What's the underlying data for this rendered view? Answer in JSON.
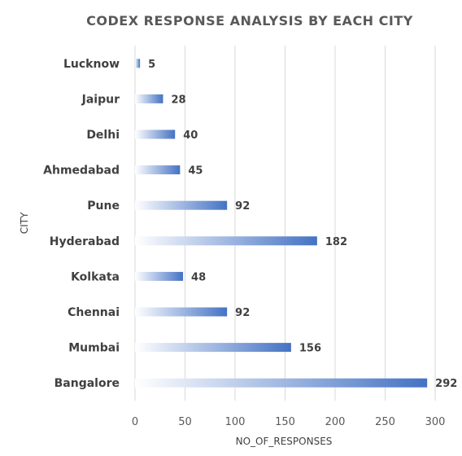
{
  "chart_data": {
    "type": "bar",
    "orientation": "horizontal",
    "title": "CODEX RESPONSE ANALYSIS BY EACH CITY",
    "xlabel": "NO_OF_RESPONSES",
    "ylabel": "CITY",
    "categories": [
      "Lucknow",
      "Jaipur",
      "Delhi",
      "Ahmedabad",
      "Pune",
      "Hyderabad",
      "Kolkata",
      "Chennai",
      "Mumbai",
      "Bangalore"
    ],
    "values": [
      5,
      28,
      40,
      45,
      92,
      182,
      48,
      92,
      156,
      292
    ],
    "xlim": [
      0,
      300
    ],
    "xticks": [
      "0",
      "50",
      "100",
      "150",
      "200",
      "250",
      "300"
    ],
    "grid": "vertical",
    "legend": "none",
    "colors": {
      "bar": "#4472c4",
      "bar_fade": "#ffffff"
    }
  }
}
